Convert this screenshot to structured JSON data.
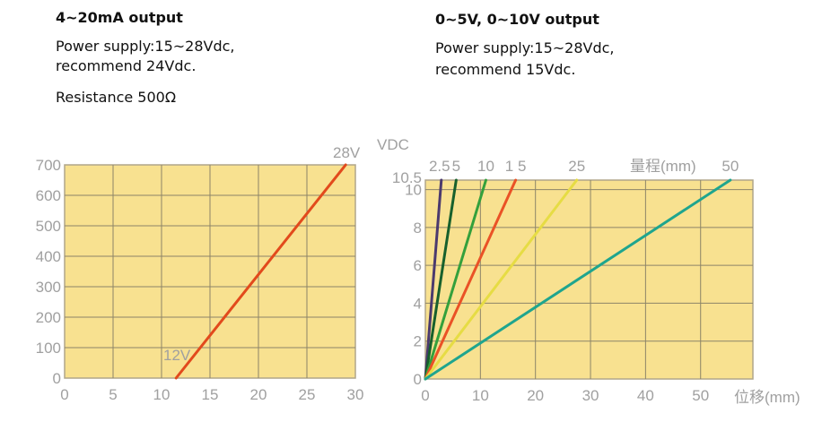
{
  "left_text": {
    "title": "4~20mA output",
    "line1": "Power supply:15~28Vdc,",
    "line2": "recommend 24Vdc.",
    "line3": "Resistance 500Ω"
  },
  "right_text": {
    "title": "0~5V, 0~10V output",
    "line1": "Power supply:15~28Vdc,",
    "line2": "recommend 15Vdc."
  },
  "chart_data": [
    {
      "type": "line",
      "title": "",
      "xlabel": "",
      "ylabel": "",
      "xlim": [
        0,
        30
      ],
      "ylim": [
        0,
        700
      ],
      "xticks": [
        0,
        5,
        10,
        15,
        20,
        25,
        30
      ],
      "yticks": [
        0,
        100,
        200,
        300,
        400,
        500,
        600,
        700
      ],
      "grid": true,
      "series": [
        {
          "name": "supply",
          "color": "#e24a1c",
          "points": [
            [
              11.5,
              0
            ],
            [
              29,
              700
            ]
          ]
        }
      ],
      "annotations": [
        "12V",
        "28V"
      ]
    },
    {
      "type": "line",
      "title": "",
      "ylabel": "VDC",
      "xlabel": "位移(mm)",
      "legend_title": "量程(mm)",
      "xlim": [
        0,
        59.5
      ],
      "ylim": [
        0,
        10.5
      ],
      "xticks": [
        0,
        10,
        20,
        30,
        40,
        50
      ],
      "yticks": [
        0,
        2,
        4,
        6,
        8,
        10,
        10.5
      ],
      "grid": true,
      "series": [
        {
          "name": "2.5",
          "color": "#4b3a6e",
          "points": [
            [
              0,
              0
            ],
            [
              2.9,
              10.5
            ]
          ]
        },
        {
          "name": "5",
          "color": "#17602c",
          "points": [
            [
              0,
              0
            ],
            [
              5.6,
              10.5
            ]
          ]
        },
        {
          "name": "10",
          "color": "#34a03c",
          "points": [
            [
              0,
              0
            ],
            [
              11,
              10.5
            ]
          ]
        },
        {
          "name": "1 5",
          "color": "#ea5226",
          "points": [
            [
              0,
              0
            ],
            [
              16.4,
              10.5
            ]
          ]
        },
        {
          "name": "25",
          "color": "#e6dc44",
          "points": [
            [
              0,
              0
            ],
            [
              27.5,
              10.5
            ]
          ]
        },
        {
          "name": "50",
          "color": "#1fa58e",
          "points": [
            [
              0,
              0
            ],
            [
              55.4,
              10.5
            ]
          ]
        }
      ]
    }
  ]
}
